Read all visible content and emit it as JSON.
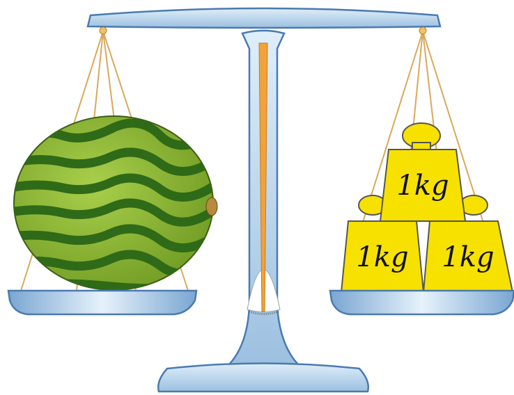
{
  "weights": [
    {
      "label": "1kg"
    },
    {
      "label": "1kg"
    },
    {
      "label": "1kg"
    }
  ]
}
